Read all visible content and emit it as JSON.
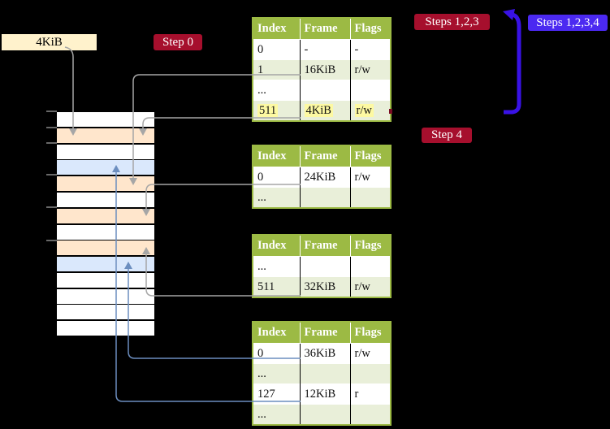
{
  "colors": {
    "table_header_green": "#9cba44",
    "row_shade_green": "#e9efd9",
    "highlight_yellow": "#fdf9a2",
    "memory_peach": "#ffe6cc",
    "memory_blue": "#dae8fc",
    "frame_box_cream": "#fff2cc",
    "red_badge": "#a60f2d",
    "blue_badge": "#4b29f1",
    "gray_arrow": "#a6a6a6",
    "blue_arrow_thin": "#6c8ebf",
    "blue_arrow_thick": "#3912e6"
  },
  "frame_box": {
    "label": "4KiB"
  },
  "badges": {
    "step0": "Step 0",
    "steps123": "Steps 1,2,3",
    "steps1234": "Steps 1,2,3,4",
    "step4": "Step 4"
  },
  "tables": [
    {
      "name": "page-table-1",
      "headers": [
        "Index",
        "Frame",
        "Flags"
      ],
      "rows": [
        {
          "cells": [
            "0",
            "-",
            "-"
          ],
          "shaded": false,
          "highlighted": false
        },
        {
          "cells": [
            "1",
            "16KiB",
            "r/w"
          ],
          "shaded": true,
          "highlighted": false
        },
        {
          "cells": [
            "...",
            "",
            ""
          ],
          "shaded": false,
          "highlighted": false
        },
        {
          "cells": [
            "511",
            "4KiB",
            "r/w"
          ],
          "shaded": true,
          "highlighted": true
        }
      ]
    },
    {
      "name": "page-table-2",
      "headers": [
        "Index",
        "Frame",
        "Flags"
      ],
      "rows": [
        {
          "cells": [
            "0",
            "24KiB",
            "r/w"
          ],
          "shaded": false,
          "highlighted": false
        },
        {
          "cells": [
            "...",
            "",
            ""
          ],
          "shaded": true,
          "highlighted": false
        }
      ]
    },
    {
      "name": "page-table-3",
      "headers": [
        "Index",
        "Frame",
        "Flags"
      ],
      "rows": [
        {
          "cells": [
            "...",
            "",
            ""
          ],
          "shaded": false,
          "highlighted": false
        },
        {
          "cells": [
            "511",
            "32KiB",
            "r/w"
          ],
          "shaded": true,
          "highlighted": false
        }
      ]
    },
    {
      "name": "page-table-4",
      "headers": [
        "Index",
        "Frame",
        "Flags"
      ],
      "rows": [
        {
          "cells": [
            "0",
            "36KiB",
            "r/w"
          ],
          "shaded": false,
          "highlighted": false
        },
        {
          "cells": [
            "...",
            "",
            ""
          ],
          "shaded": true,
          "highlighted": false
        },
        {
          "cells": [
            "127",
            "12KiB",
            "r"
          ],
          "shaded": false,
          "highlighted": false
        },
        {
          "cells": [
            "...",
            "",
            ""
          ],
          "shaded": true,
          "highlighted": false
        }
      ]
    }
  ],
  "memory_stack": {
    "rows": [
      "white",
      "peach",
      "white",
      "blue",
      "peach",
      "white",
      "peach",
      "white",
      "peach",
      "blue",
      "white",
      "white",
      "white",
      "white"
    ]
  }
}
